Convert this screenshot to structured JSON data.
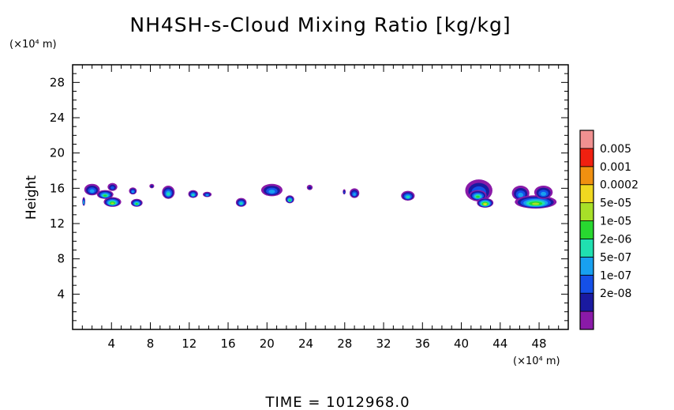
{
  "chart_data": {
    "type": "heatmap",
    "title": "NH4SH-s-Cloud Mixing Ratio [kg/kg]",
    "ylabel": "Height",
    "xunit": "(×10⁴ m)",
    "yunit": "(×10⁴ m)",
    "xlim": [
      0,
      51
    ],
    "ylim": [
      0,
      30
    ],
    "xticks": [
      "4",
      "8",
      "12",
      "16",
      "20",
      "24",
      "28",
      "32",
      "36",
      "40",
      "44",
      "48"
    ],
    "xtick_values": [
      4,
      8,
      12,
      16,
      20,
      24,
      28,
      32,
      36,
      40,
      44,
      48
    ],
    "yticks": [
      "4",
      "8",
      "12",
      "16",
      "20",
      "24",
      "28"
    ],
    "ytick_values": [
      4,
      8,
      12,
      16,
      20,
      24,
      28
    ],
    "grid": false,
    "legend_position": "right",
    "colorbar": {
      "labels": [
        "0.005",
        "0.001",
        "0.0002",
        "5e-05",
        "1e-05",
        "2e-06",
        "5e-07",
        "1e-07",
        "2e-08"
      ],
      "colors": [
        "#8a1aa8",
        "#1a1aa0",
        "#1550e8",
        "#18a0f0",
        "#20e0b0",
        "#28d830",
        "#a8e028",
        "#f0d820",
        "#f09010",
        "#f02010",
        "#f09090"
      ]
    },
    "cloud_patches": [
      {
        "x": [
          1.2,
          2.8
        ],
        "y": [
          15.2,
          16.5
        ],
        "level": 3
      },
      {
        "x": [
          1.0,
          1.3
        ],
        "y": [
          14.0,
          15.0
        ],
        "level": 4
      },
      {
        "x": [
          2.5,
          4.2
        ],
        "y": [
          14.8,
          15.8
        ],
        "level": 5
      },
      {
        "x": [
          3.2,
          5.0
        ],
        "y": [
          13.9,
          15.0
        ],
        "level": 6
      },
      {
        "x": [
          3.6,
          4.6
        ],
        "y": [
          15.7,
          16.6
        ],
        "level": 2
      },
      {
        "x": [
          5.8,
          6.6
        ],
        "y": [
          15.3,
          16.1
        ],
        "level": 3
      },
      {
        "x": [
          6.0,
          7.2
        ],
        "y": [
          13.9,
          14.8
        ],
        "level": 5
      },
      {
        "x": [
          7.9,
          8.4
        ],
        "y": [
          16.0,
          16.5
        ],
        "level": 1
      },
      {
        "x": [
          9.2,
          10.5
        ],
        "y": [
          14.8,
          16.3
        ],
        "level": 4
      },
      {
        "x": [
          11.9,
          12.9
        ],
        "y": [
          14.9,
          15.8
        ],
        "level": 4
      },
      {
        "x": [
          13.4,
          14.3
        ],
        "y": [
          15.0,
          15.6
        ],
        "level": 3
      },
      {
        "x": [
          16.8,
          17.9
        ],
        "y": [
          13.9,
          14.9
        ],
        "level": 4
      },
      {
        "x": [
          19.4,
          21.6
        ],
        "y": [
          15.1,
          16.5
        ],
        "level": 3
      },
      {
        "x": [
          21.9,
          22.8
        ],
        "y": [
          14.3,
          15.2
        ],
        "level": 5
      },
      {
        "x": [
          24.1,
          24.7
        ],
        "y": [
          15.8,
          16.4
        ],
        "level": 1
      },
      {
        "x": [
          27.8,
          28.1
        ],
        "y": [
          15.3,
          15.9
        ],
        "level": 2
      },
      {
        "x": [
          28.5,
          29.5
        ],
        "y": [
          14.9,
          16.0
        ],
        "level": 3
      },
      {
        "x": [
          33.8,
          35.2
        ],
        "y": [
          14.6,
          15.7
        ],
        "level": 4
      },
      {
        "x": [
          40.4,
          43.2
        ],
        "y": [
          14.5,
          17.0
        ],
        "level": 3
      },
      {
        "x": [
          40.8,
          42.6
        ],
        "y": [
          14.6,
          15.8
        ],
        "level": 5
      },
      {
        "x": [
          41.6,
          43.3
        ],
        "y": [
          13.8,
          14.9
        ],
        "level": 7
      },
      {
        "x": [
          45.2,
          47.0
        ],
        "y": [
          14.6,
          16.3
        ],
        "level": 3
      },
      {
        "x": [
          45.5,
          49.8
        ],
        "y": [
          13.7,
          15.2
        ],
        "level": 6
      },
      {
        "x": [
          47.5,
          49.4
        ],
        "y": [
          14.8,
          16.3
        ],
        "level": 3
      }
    ]
  },
  "time_label": "TIME  =  1012968.0"
}
